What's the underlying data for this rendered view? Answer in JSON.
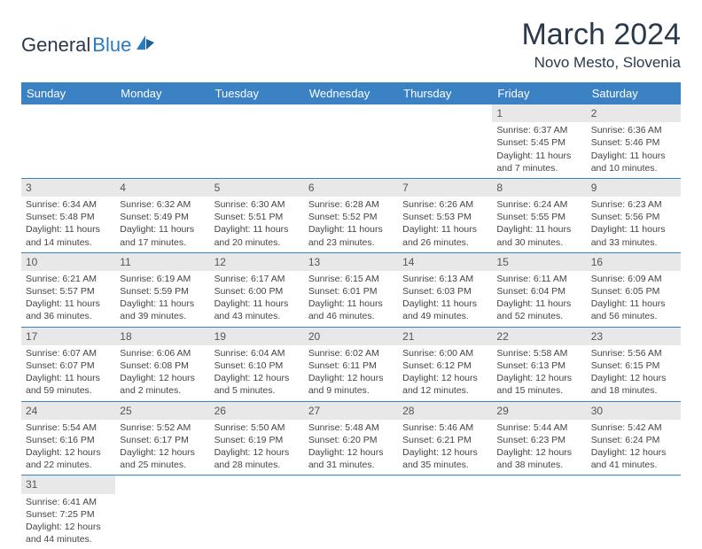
{
  "logo": {
    "text1": "General",
    "text2": "Blue"
  },
  "title": "March 2024",
  "location": "Novo Mesto, Slovenia",
  "colors": {
    "header_bg": "#3b82c4",
    "header_text": "#ffffff",
    "daynum_bg": "#e8e8e8",
    "cell_border": "#3b82c4",
    "text": "#444444",
    "title_color": "#2b3a4a"
  },
  "weekdays": [
    "Sunday",
    "Monday",
    "Tuesday",
    "Wednesday",
    "Thursday",
    "Friday",
    "Saturday"
  ],
  "weeks": [
    [
      null,
      null,
      null,
      null,
      null,
      {
        "n": "1",
        "sr": "Sunrise: 6:37 AM",
        "ss": "Sunset: 5:45 PM",
        "d1": "Daylight: 11 hours",
        "d2": "and 7 minutes."
      },
      {
        "n": "2",
        "sr": "Sunrise: 6:36 AM",
        "ss": "Sunset: 5:46 PM",
        "d1": "Daylight: 11 hours",
        "d2": "and 10 minutes."
      }
    ],
    [
      {
        "n": "3",
        "sr": "Sunrise: 6:34 AM",
        "ss": "Sunset: 5:48 PM",
        "d1": "Daylight: 11 hours",
        "d2": "and 14 minutes."
      },
      {
        "n": "4",
        "sr": "Sunrise: 6:32 AM",
        "ss": "Sunset: 5:49 PM",
        "d1": "Daylight: 11 hours",
        "d2": "and 17 minutes."
      },
      {
        "n": "5",
        "sr": "Sunrise: 6:30 AM",
        "ss": "Sunset: 5:51 PM",
        "d1": "Daylight: 11 hours",
        "d2": "and 20 minutes."
      },
      {
        "n": "6",
        "sr": "Sunrise: 6:28 AM",
        "ss": "Sunset: 5:52 PM",
        "d1": "Daylight: 11 hours",
        "d2": "and 23 minutes."
      },
      {
        "n": "7",
        "sr": "Sunrise: 6:26 AM",
        "ss": "Sunset: 5:53 PM",
        "d1": "Daylight: 11 hours",
        "d2": "and 26 minutes."
      },
      {
        "n": "8",
        "sr": "Sunrise: 6:24 AM",
        "ss": "Sunset: 5:55 PM",
        "d1": "Daylight: 11 hours",
        "d2": "and 30 minutes."
      },
      {
        "n": "9",
        "sr": "Sunrise: 6:23 AM",
        "ss": "Sunset: 5:56 PM",
        "d1": "Daylight: 11 hours",
        "d2": "and 33 minutes."
      }
    ],
    [
      {
        "n": "10",
        "sr": "Sunrise: 6:21 AM",
        "ss": "Sunset: 5:57 PM",
        "d1": "Daylight: 11 hours",
        "d2": "and 36 minutes."
      },
      {
        "n": "11",
        "sr": "Sunrise: 6:19 AM",
        "ss": "Sunset: 5:59 PM",
        "d1": "Daylight: 11 hours",
        "d2": "and 39 minutes."
      },
      {
        "n": "12",
        "sr": "Sunrise: 6:17 AM",
        "ss": "Sunset: 6:00 PM",
        "d1": "Daylight: 11 hours",
        "d2": "and 43 minutes."
      },
      {
        "n": "13",
        "sr": "Sunrise: 6:15 AM",
        "ss": "Sunset: 6:01 PM",
        "d1": "Daylight: 11 hours",
        "d2": "and 46 minutes."
      },
      {
        "n": "14",
        "sr": "Sunrise: 6:13 AM",
        "ss": "Sunset: 6:03 PM",
        "d1": "Daylight: 11 hours",
        "d2": "and 49 minutes."
      },
      {
        "n": "15",
        "sr": "Sunrise: 6:11 AM",
        "ss": "Sunset: 6:04 PM",
        "d1": "Daylight: 11 hours",
        "d2": "and 52 minutes."
      },
      {
        "n": "16",
        "sr": "Sunrise: 6:09 AM",
        "ss": "Sunset: 6:05 PM",
        "d1": "Daylight: 11 hours",
        "d2": "and 56 minutes."
      }
    ],
    [
      {
        "n": "17",
        "sr": "Sunrise: 6:07 AM",
        "ss": "Sunset: 6:07 PM",
        "d1": "Daylight: 11 hours",
        "d2": "and 59 minutes."
      },
      {
        "n": "18",
        "sr": "Sunrise: 6:06 AM",
        "ss": "Sunset: 6:08 PM",
        "d1": "Daylight: 12 hours",
        "d2": "and 2 minutes."
      },
      {
        "n": "19",
        "sr": "Sunrise: 6:04 AM",
        "ss": "Sunset: 6:10 PM",
        "d1": "Daylight: 12 hours",
        "d2": "and 5 minutes."
      },
      {
        "n": "20",
        "sr": "Sunrise: 6:02 AM",
        "ss": "Sunset: 6:11 PM",
        "d1": "Daylight: 12 hours",
        "d2": "and 9 minutes."
      },
      {
        "n": "21",
        "sr": "Sunrise: 6:00 AM",
        "ss": "Sunset: 6:12 PM",
        "d1": "Daylight: 12 hours",
        "d2": "and 12 minutes."
      },
      {
        "n": "22",
        "sr": "Sunrise: 5:58 AM",
        "ss": "Sunset: 6:13 PM",
        "d1": "Daylight: 12 hours",
        "d2": "and 15 minutes."
      },
      {
        "n": "23",
        "sr": "Sunrise: 5:56 AM",
        "ss": "Sunset: 6:15 PM",
        "d1": "Daylight: 12 hours",
        "d2": "and 18 minutes."
      }
    ],
    [
      {
        "n": "24",
        "sr": "Sunrise: 5:54 AM",
        "ss": "Sunset: 6:16 PM",
        "d1": "Daylight: 12 hours",
        "d2": "and 22 minutes."
      },
      {
        "n": "25",
        "sr": "Sunrise: 5:52 AM",
        "ss": "Sunset: 6:17 PM",
        "d1": "Daylight: 12 hours",
        "d2": "and 25 minutes."
      },
      {
        "n": "26",
        "sr": "Sunrise: 5:50 AM",
        "ss": "Sunset: 6:19 PM",
        "d1": "Daylight: 12 hours",
        "d2": "and 28 minutes."
      },
      {
        "n": "27",
        "sr": "Sunrise: 5:48 AM",
        "ss": "Sunset: 6:20 PM",
        "d1": "Daylight: 12 hours",
        "d2": "and 31 minutes."
      },
      {
        "n": "28",
        "sr": "Sunrise: 5:46 AM",
        "ss": "Sunset: 6:21 PM",
        "d1": "Daylight: 12 hours",
        "d2": "and 35 minutes."
      },
      {
        "n": "29",
        "sr": "Sunrise: 5:44 AM",
        "ss": "Sunset: 6:23 PM",
        "d1": "Daylight: 12 hours",
        "d2": "and 38 minutes."
      },
      {
        "n": "30",
        "sr": "Sunrise: 5:42 AM",
        "ss": "Sunset: 6:24 PM",
        "d1": "Daylight: 12 hours",
        "d2": "and 41 minutes."
      }
    ],
    [
      {
        "n": "31",
        "sr": "Sunrise: 6:41 AM",
        "ss": "Sunset: 7:25 PM",
        "d1": "Daylight: 12 hours",
        "d2": "and 44 minutes."
      },
      null,
      null,
      null,
      null,
      null,
      null
    ]
  ]
}
